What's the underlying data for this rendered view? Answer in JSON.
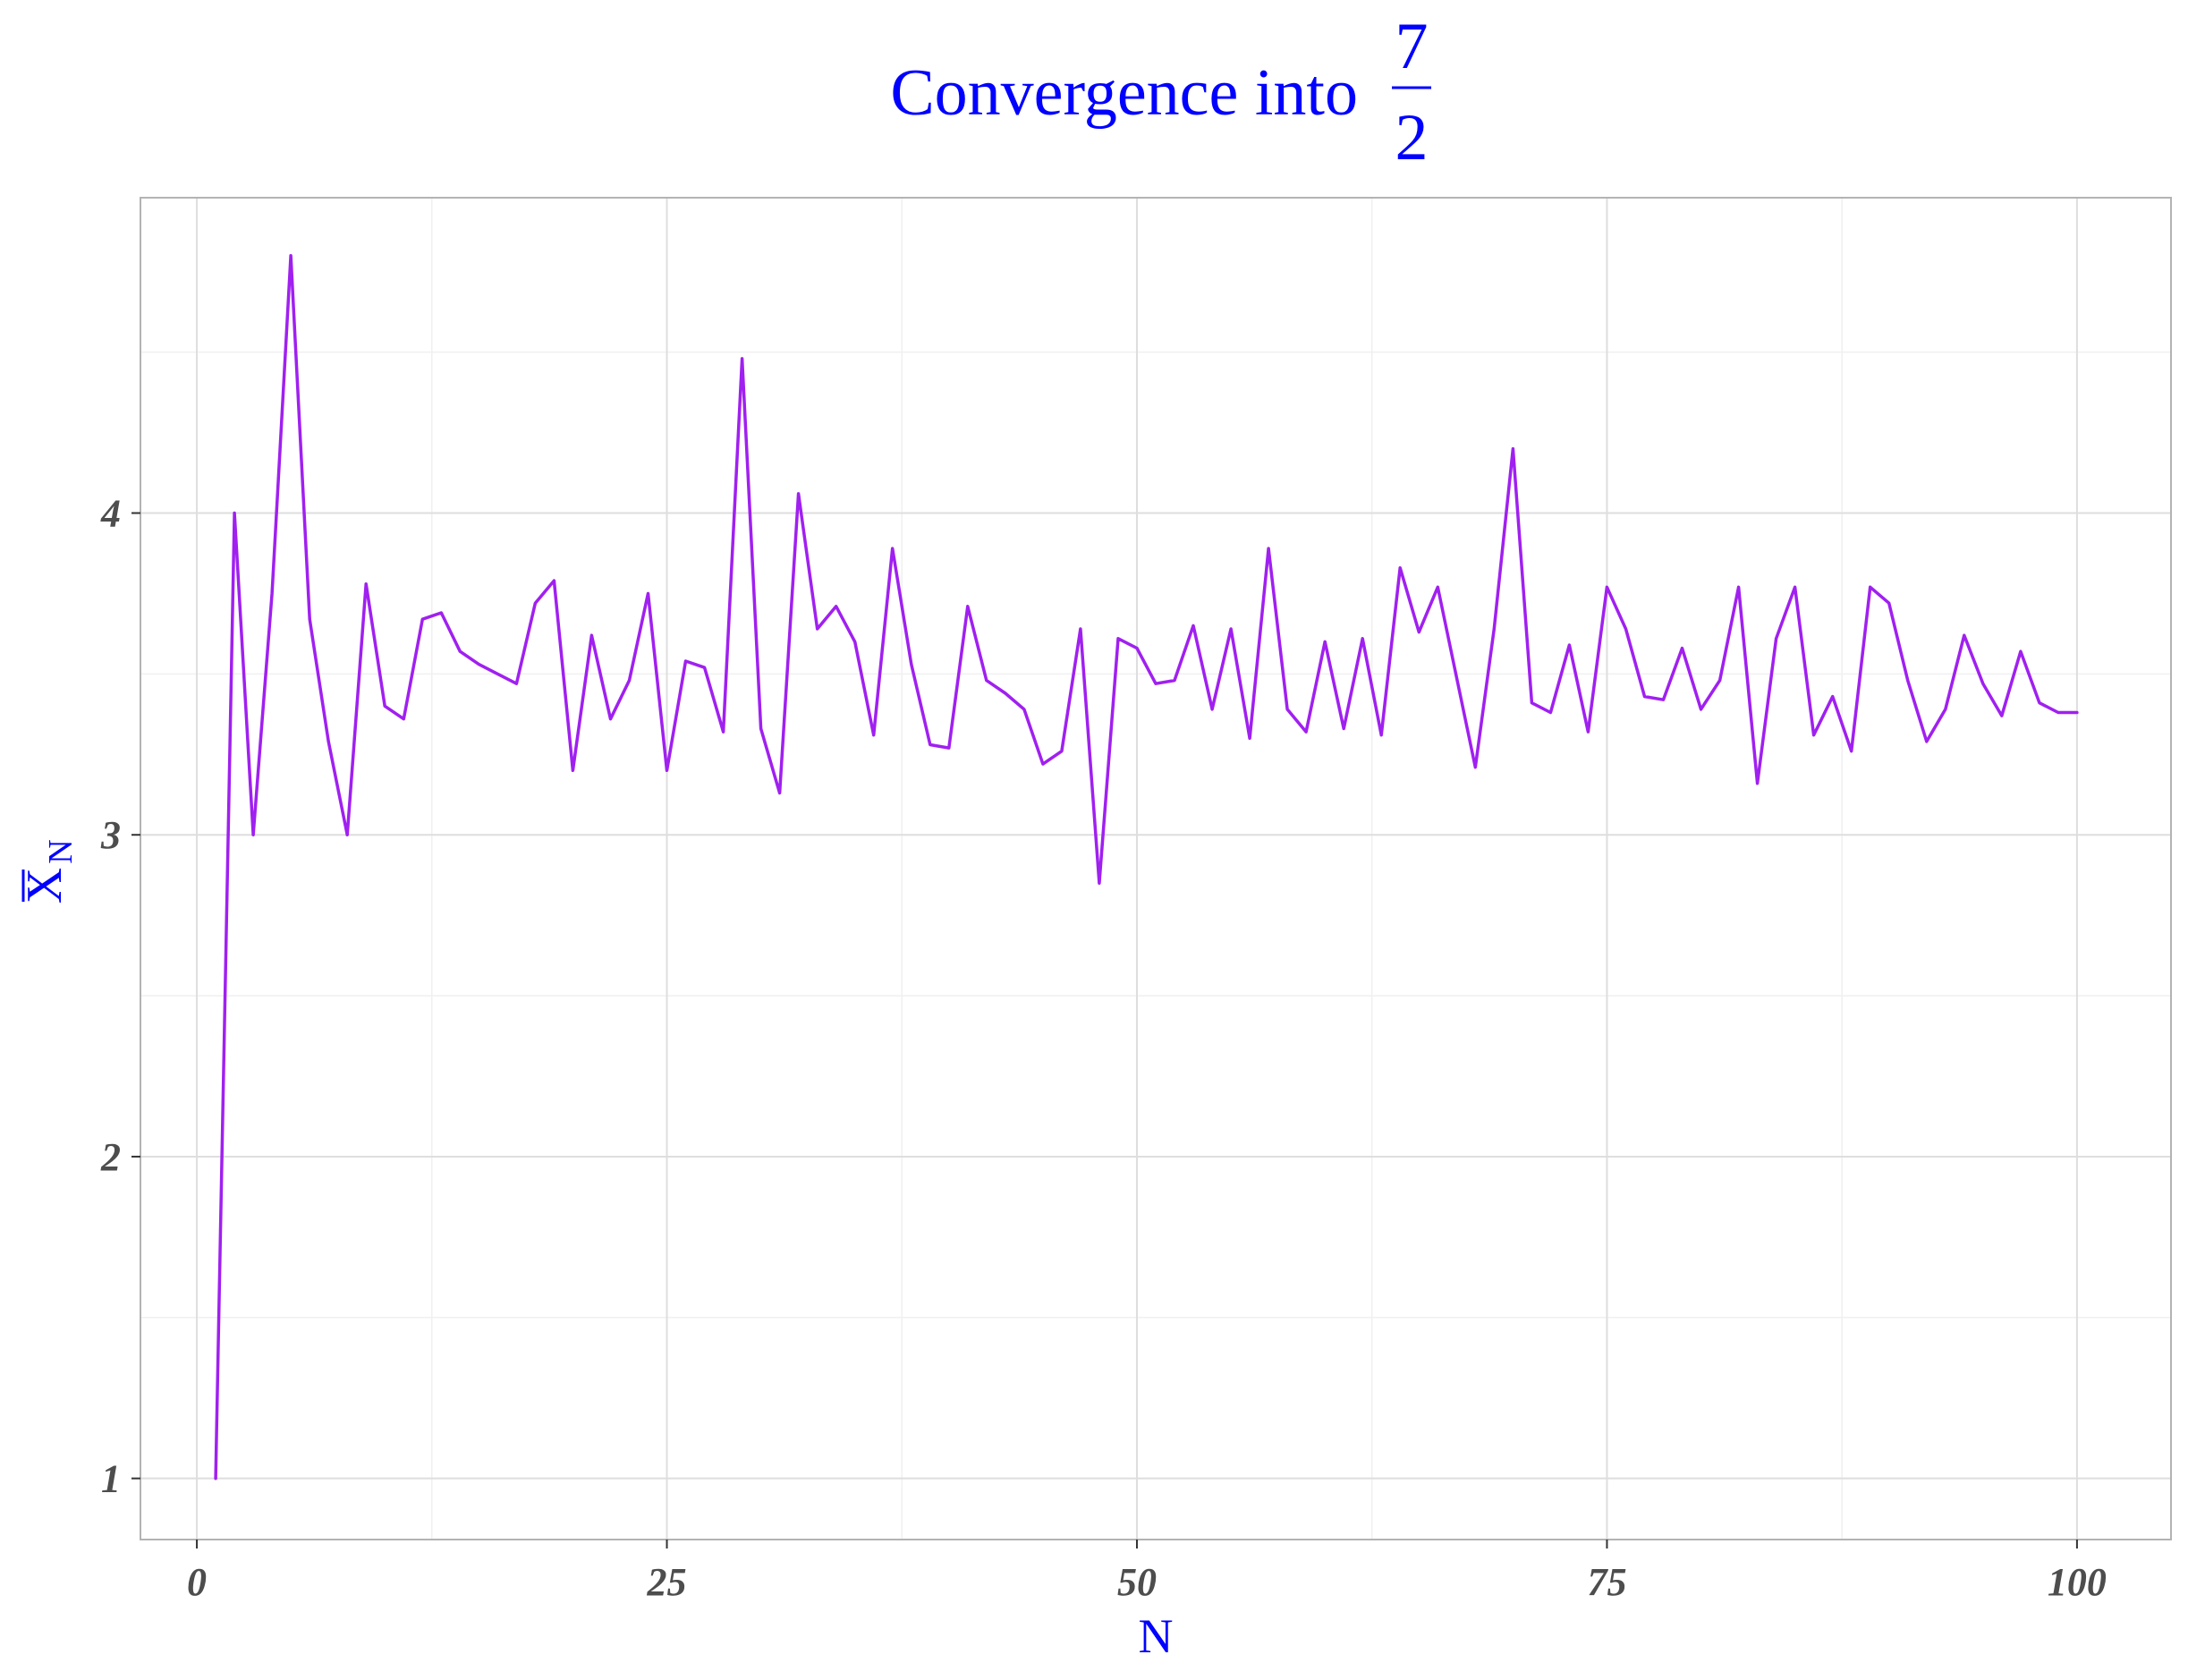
{
  "chart_data": {
    "type": "line",
    "title": {
      "prefix": "Convergence into",
      "numerator": "7",
      "denominator": "2"
    },
    "xlabel": "N",
    "ylabel": {
      "main": "X",
      "subscript": "N"
    },
    "xlim": [
      -3,
      105
    ],
    "ylim": [
      0.81,
      4.98
    ],
    "x_ticks": [
      0,
      25,
      50,
      75,
      100
    ],
    "x_tick_labels": [
      "0",
      "25",
      "50",
      "75",
      "100"
    ],
    "x_minor_ticks": [
      12.5,
      37.5,
      62.5,
      87.5
    ],
    "y_ticks": [
      1,
      2,
      3,
      4
    ],
    "y_tick_labels": [
      "1",
      "2",
      "3",
      "4"
    ],
    "y_minor_ticks": [
      1.5,
      2.5,
      3.5,
      4.5
    ],
    "grid": true,
    "series": [
      {
        "color": "#a020f0",
        "x": [
          1,
          2,
          3,
          4,
          5,
          6,
          7,
          8,
          9,
          10,
          11,
          12,
          13,
          14,
          15,
          16,
          17,
          18,
          19,
          20,
          21,
          22,
          23,
          24,
          25,
          26,
          27,
          28,
          29,
          30,
          31,
          32,
          33,
          34,
          35,
          36,
          37,
          38,
          39,
          40,
          41,
          42,
          43,
          44,
          45,
          46,
          47,
          48,
          49,
          50,
          51,
          52,
          53,
          54,
          55,
          56,
          57,
          58,
          59,
          60,
          61,
          62,
          63,
          64,
          65,
          66,
          67,
          68,
          69,
          70,
          71,
          72,
          73,
          74,
          75,
          76,
          77,
          78,
          79,
          80,
          81,
          82,
          83,
          84,
          85,
          86,
          87,
          88,
          89,
          90,
          91,
          92,
          93,
          94,
          95,
          96,
          97,
          98,
          99,
          100
        ],
        "y": [
          1.0,
          4.0,
          3.0,
          3.75,
          4.8,
          3.67,
          3.29,
          3.0,
          3.78,
          3.4,
          3.36,
          3.67,
          3.69,
          3.57,
          3.53,
          3.5,
          3.47,
          3.72,
          3.79,
          3.2,
          3.62,
          3.36,
          3.48,
          3.75,
          3.2,
          3.54,
          3.52,
          3.32,
          4.48,
          3.33,
          3.13,
          4.06,
          3.64,
          3.71,
          3.6,
          3.31,
          3.89,
          3.53,
          3.28,
          3.27,
          3.71,
          3.48,
          3.44,
          3.39,
          3.22,
          3.26,
          3.64,
          2.85,
          3.61,
          3.58,
          3.47,
          3.48,
          3.65,
          3.39,
          3.64,
          3.3,
          3.89,
          3.39,
          3.32,
          3.6,
          3.33,
          3.61,
          3.31,
          3.83,
          3.63,
          3.77,
          3.49,
          3.21,
          3.64,
          4.2,
          3.41,
          3.38,
          3.59,
          3.32,
          3.77,
          3.64,
          3.43,
          3.42,
          3.58,
          3.39,
          3.48,
          3.77,
          3.16,
          3.61,
          3.77,
          3.31,
          3.43,
          3.26,
          3.77,
          3.72,
          3.48,
          3.29,
          3.39,
          3.62,
          3.47,
          3.37,
          3.57,
          3.41,
          3.38,
          3.38
        ]
      }
    ]
  }
}
